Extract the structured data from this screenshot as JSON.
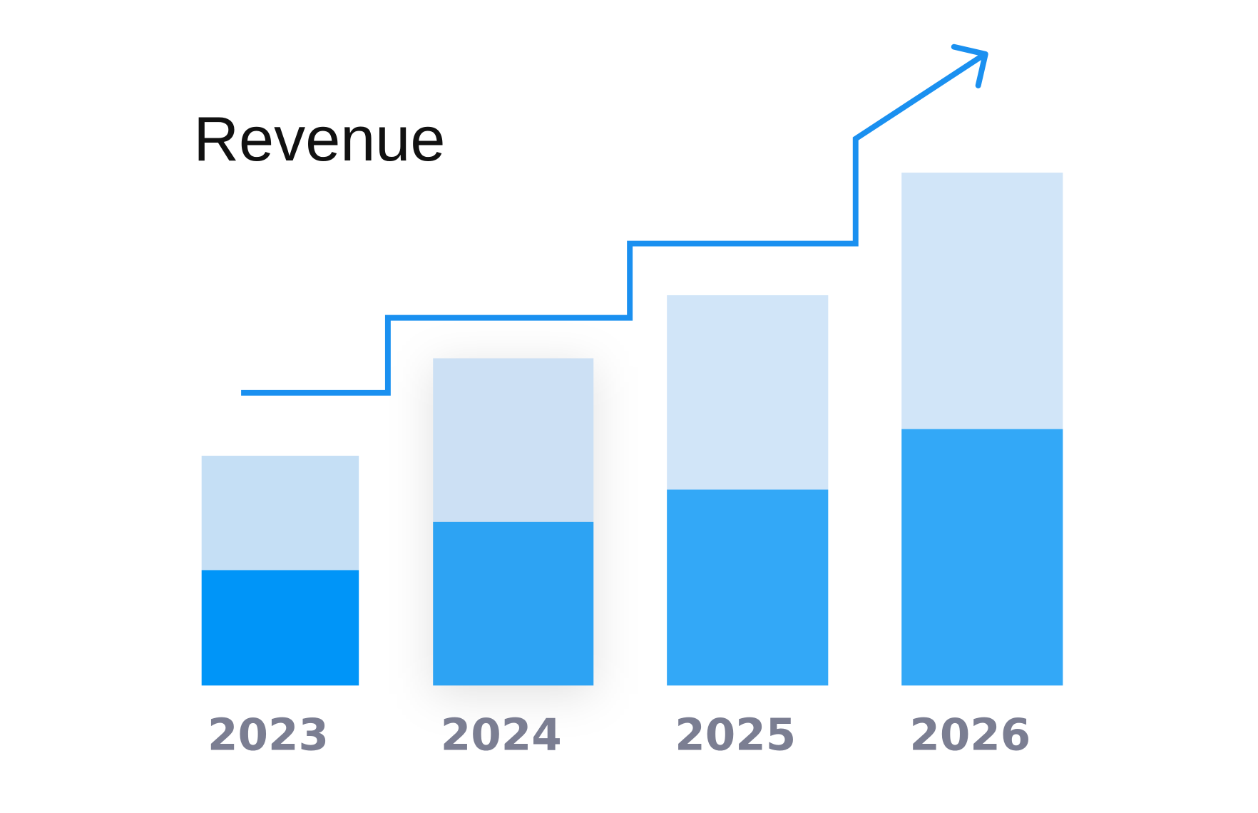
{
  "chart_data": {
    "type": "bar",
    "stacked": true,
    "title": "Revenue",
    "xlabel": "",
    "ylabel": "",
    "categories": [
      "2023",
      "2024",
      "2025",
      "2026"
    ],
    "series": [
      {
        "values": [
          22.5,
          31.9,
          38.2,
          50.0
        ]
      },
      {
        "values": [
          22.3,
          31.9,
          37.9,
          50.0
        ]
      }
    ],
    "ylim": [
      0,
      100
    ],
    "grid": false,
    "axes_visible": false,
    "trend_arrow": true,
    "colors": {
      "bottom": [
        "#0095f8",
        "#2da3f3",
        "#33a8f7",
        "#33a8f7"
      ],
      "top": [
        "#c5dff5",
        "#cce0f4",
        "#d1e5f8",
        "#d1e5f8"
      ],
      "trend": "#1a90f0",
      "tick_labels": "#7b7e92",
      "title": "#111111"
    }
  }
}
